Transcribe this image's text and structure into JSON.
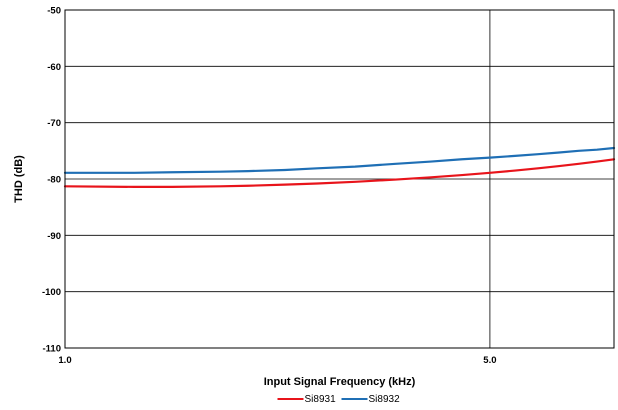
{
  "chart_data": {
    "type": "line",
    "title": "",
    "xlabel": "Input Signal Frequency (kHz)",
    "ylabel": "THD (dB)",
    "x_scale": "log",
    "xlim": [
      1.0,
      8.0
    ],
    "ylim": [
      -110,
      -50
    ],
    "x_ticks": [
      {
        "value": 1.0,
        "label": "1.0"
      },
      {
        "value": 5.0,
        "label": "5.0"
      }
    ],
    "y_ticks": [
      {
        "value": -50,
        "label": "-50"
      },
      {
        "value": -60,
        "label": "-60"
      },
      {
        "value": -70,
        "label": "-70"
      },
      {
        "value": -80,
        "label": "-80"
      },
      {
        "value": -90,
        "label": "-90"
      },
      {
        "value": -100,
        "label": "-100"
      },
      {
        "value": -110,
        "label": "-110"
      }
    ],
    "grid": true,
    "legend_position": "bottom",
    "series": [
      {
        "name": "Si8931",
        "color": "#e8141b",
        "x": [
          1.0,
          1.3,
          1.5,
          1.8,
          2.0,
          2.3,
          2.6,
          3.0,
          3.5,
          4.0,
          4.5,
          5.0,
          5.5,
          6.0,
          6.5,
          7.0,
          7.5,
          8.0
        ],
        "y": [
          -81.3,
          -81.4,
          -81.4,
          -81.3,
          -81.2,
          -81.0,
          -80.8,
          -80.5,
          -80.1,
          -79.7,
          -79.3,
          -78.9,
          -78.5,
          -78.1,
          -77.7,
          -77.3,
          -76.9,
          -76.5
        ]
      },
      {
        "name": "Si8932",
        "color": "#1f6fb5",
        "x": [
          1.0,
          1.3,
          1.5,
          1.8,
          2.0,
          2.3,
          2.6,
          3.0,
          3.5,
          4.0,
          4.5,
          5.0,
          5.5,
          6.0,
          6.5,
          7.0,
          7.5,
          8.0
        ],
        "y": [
          -78.9,
          -78.9,
          -78.8,
          -78.7,
          -78.6,
          -78.4,
          -78.1,
          -77.8,
          -77.3,
          -76.9,
          -76.5,
          -76.2,
          -75.9,
          -75.6,
          -75.3,
          -75.0,
          -74.8,
          -74.5
        ]
      }
    ]
  }
}
